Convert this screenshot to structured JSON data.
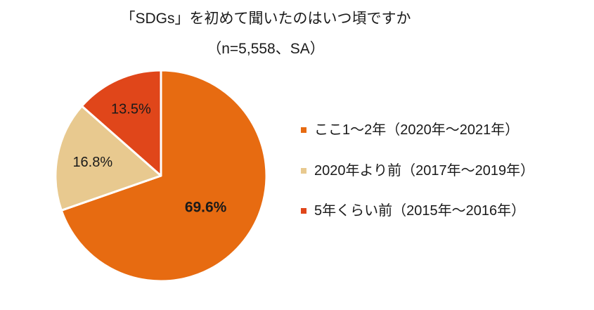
{
  "chart_data": {
    "type": "pie",
    "title": "「SDGs」を初めて聞いたのはいつ頃ですか",
    "subtitle": "（n=5,558、SA）",
    "categories": [
      "ここ1～2年（2020年～2021年）",
      "2020年より前（2017年～2019年）",
      "5年くらい前（2015年～2016年）"
    ],
    "values": [
      69.6,
      16.8,
      13.5
    ],
    "data_labels": [
      "69.6%",
      "16.8%",
      "13.5%"
    ],
    "colors": [
      "#E76B11",
      "#E8C98F",
      "#E0461A"
    ],
    "legend_position": "right"
  }
}
